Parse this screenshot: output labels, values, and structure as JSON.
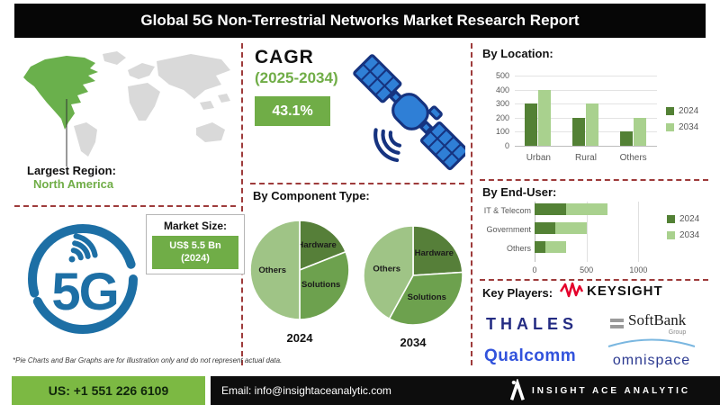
{
  "title": "Global 5G Non-Terrestrial Networks Market Research Report",
  "colors": {
    "accent_green": "#70ad47",
    "series_2024": "#538135",
    "series_2034": "#a9d18e",
    "map_highlight": "#6ab04c",
    "map_land": "#d9d9d9",
    "dashed_divider": "#9e3b3b",
    "satellite_blue": "#2f7fd6",
    "satellite_outline": "#16337f",
    "logo_5g_blue": "#1d6fa5",
    "keysight_red": "#e4002b",
    "thales_blue": "#242c83",
    "qualcomm_blue": "#3253dc",
    "omnispace_blue": "#2b3990",
    "footer_green": "#7cb943"
  },
  "map": {
    "largest_region_label": "Largest Region:",
    "largest_region_value": "North America"
  },
  "cagr": {
    "label": "CAGR",
    "period": "(2025-2034)",
    "value": "43.1%"
  },
  "market_size": {
    "label": "Market Size:",
    "value_line1": "US$ 5.5 Bn",
    "value_line2": "(2024)"
  },
  "sections": {
    "by_location": "By Location:",
    "by_component": "By Component Type:",
    "by_end_user": "By End-User:",
    "key_players": "Key Players:"
  },
  "key_players": {
    "keysight": "KEYSIGHT",
    "thales": "THALES",
    "softbank": "SoftBank",
    "softbank_group": "Group",
    "qualcomm": "Qualcomm",
    "omnispace": "omnispace"
  },
  "footnote": "*Pie Charts and Bar Graphs are for illustration only and do not represent actual data.",
  "footer": {
    "phone": "US: +1 551 226 6109",
    "email": "Email: info@insightaceanalytic.com",
    "brand": "INSIGHT ACE ANALYTIC"
  },
  "chart_data": [
    {
      "id": "by_location",
      "type": "bar",
      "title": "By Location:",
      "categories": [
        "Urban",
        "Rural",
        "Others"
      ],
      "series": [
        {
          "name": "2024",
          "values": [
            300,
            200,
            100
          ],
          "color": "#538135"
        },
        {
          "name": "2034",
          "values": [
            400,
            300,
            200
          ],
          "color": "#a9d18e"
        }
      ],
      "ylim": [
        0,
        500
      ],
      "yticks": [
        0,
        100,
        200,
        300,
        400,
        500
      ],
      "legend_position": "right",
      "grid": true
    },
    {
      "id": "by_component_2024",
      "type": "pie",
      "title": "2024",
      "labels": [
        "Hardware",
        "Solutions",
        "Others"
      ],
      "values": [
        19,
        31,
        50
      ],
      "colors": [
        "#567f39",
        "#6da14e",
        "#9fc486"
      ]
    },
    {
      "id": "by_component_2034",
      "type": "pie",
      "title": "2034",
      "labels": [
        "Hardware",
        "Solutions",
        "Others"
      ],
      "values": [
        24,
        34,
        42
      ],
      "colors": [
        "#567f39",
        "#6da14e",
        "#9fc486"
      ]
    },
    {
      "id": "by_end_user",
      "type": "bar-horizontal-stacked",
      "title": "By End-User:",
      "categories": [
        "IT & Telecom",
        "Government",
        "Others"
      ],
      "series": [
        {
          "name": "2024",
          "values": [
            300,
            200,
            100
          ],
          "color": "#538135"
        },
        {
          "name": "2034",
          "values": [
            400,
            300,
            200
          ],
          "color": "#a9d18e"
        }
      ],
      "xlim": [
        0,
        1300
      ],
      "xticks": [
        0,
        500,
        1000
      ],
      "legend_position": "right"
    }
  ]
}
